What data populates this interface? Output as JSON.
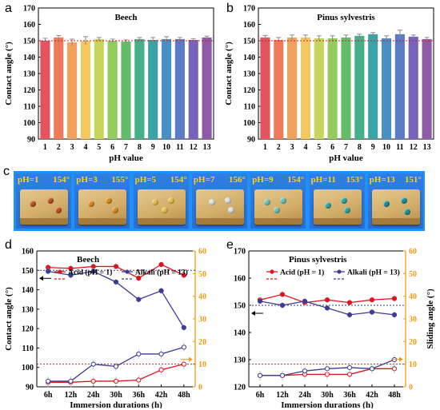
{
  "panel_letters": [
    "a",
    "b",
    "c",
    "d",
    "e"
  ],
  "colors": {
    "bar_palette": [
      "#e3545e",
      "#ee7a59",
      "#f2a15c",
      "#f4c860",
      "#c6d65c",
      "#93cb5e",
      "#62bd69",
      "#44b08a",
      "#39a3a6",
      "#4a8fc3",
      "#5b7bc7",
      "#7564b8",
      "#8e5aa6"
    ],
    "acid": "#e0141e",
    "alkali": "#3c3c96",
    "sliding_axis": "#f39c12",
    "reference_red": "#e0141e",
    "reference_blue": "#3c3c96"
  },
  "chart_data": [
    {
      "id": "a",
      "type": "bar",
      "title": "Beech",
      "xlabel": "pH value",
      "ylabel": "Contact angle (°)",
      "categories": [
        "1",
        "2",
        "3",
        "4",
        "5",
        "6",
        "7",
        "8",
        "9",
        "10",
        "11",
        "12",
        "13"
      ],
      "values": [
        150,
        152,
        149,
        150,
        151,
        150,
        149.5,
        151,
        150.5,
        151,
        151,
        150.5,
        152
      ],
      "errors": [
        1.5,
        1.2,
        2,
        2.5,
        1,
        1,
        1,
        1,
        1.5,
        1.5,
        1,
        0.8,
        0.8
      ],
      "reference_line": 150,
      "ylim": [
        90,
        170
      ],
      "yticks": [
        90,
        100,
        110,
        120,
        130,
        140,
        150,
        160,
        170
      ]
    },
    {
      "id": "b",
      "type": "bar",
      "title": "Pinus sylvestris",
      "xlabel": "pH value",
      "ylabel": "Contact angle (°)",
      "categories": [
        "1",
        "2",
        "3",
        "4",
        "5",
        "6",
        "7",
        "8",
        "9",
        "10",
        "11",
        "12",
        "13"
      ],
      "values": [
        152,
        150.5,
        152,
        152,
        151.5,
        151.5,
        152,
        153,
        154,
        151.5,
        154,
        152.5,
        151
      ],
      "errors": [
        1.2,
        1.5,
        1.5,
        1.5,
        1.5,
        1.5,
        1.5,
        1,
        1,
        1.5,
        2.5,
        1,
        1
      ],
      "reference_line": 150,
      "ylim": [
        90,
        170
      ],
      "yticks": [
        90,
        100,
        110,
        120,
        130,
        140,
        150,
        160,
        170
      ]
    },
    {
      "id": "d",
      "type": "line",
      "title": "Beech",
      "xlabel": "Immersion durations (h)",
      "ylabel": "Contact angle (°)",
      "y2label": "",
      "categories": [
        "6h",
        "12h",
        "24h",
        "30h",
        "36h",
        "42h",
        "48h"
      ],
      "ylim": [
        90,
        160
      ],
      "yticks": [
        90,
        100,
        110,
        120,
        130,
        140,
        150,
        160
      ],
      "y2lim": [
        0,
        60
      ],
      "y2ticks": [
        0,
        10,
        20,
        30,
        40,
        50,
        60
      ],
      "legend": [
        "Acid (pH = 1)",
        "Alkali (pH = 13)"
      ],
      "reference_line_contact": 150,
      "reference_line_sliding": 10,
      "series": [
        {
          "name": "Acid (pH = 1)",
          "role": "contact",
          "axis": "left",
          "marker": "filled",
          "values": [
            151.5,
            151,
            152,
            152,
            146,
            153,
            147.5
          ]
        },
        {
          "name": "Alkali (pH = 13)",
          "role": "contact",
          "axis": "left",
          "marker": "filled",
          "values": [
            149.5,
            147.5,
            149.5,
            144,
            135,
            139.5,
            120.5
          ]
        },
        {
          "name": "Acid (pH = 1)",
          "role": "sliding",
          "axis": "right",
          "marker": "open",
          "values": [
            2,
            2,
            2.5,
            2.5,
            3,
            7.5,
            10
          ]
        },
        {
          "name": "Alkali (pH = 13)",
          "role": "sliding",
          "axis": "right",
          "marker": "open",
          "values": [
            2.5,
            2.5,
            10,
            9,
            14.5,
            14.5,
            17.5
          ]
        }
      ]
    },
    {
      "id": "e",
      "type": "line",
      "title": "Pinus sylvestris",
      "xlabel": "Immersion durations (h)",
      "ylabel": "",
      "y2label": "Sliding angle (°)",
      "categories": [
        "6h",
        "12h",
        "24h",
        "30h",
        "36h",
        "42h",
        "48h"
      ],
      "ylim": [
        120,
        170
      ],
      "yticks": [
        120,
        130,
        140,
        150,
        160,
        170
      ],
      "y2lim": [
        0,
        60
      ],
      "y2ticks": [
        0,
        10,
        20,
        30,
        40,
        50,
        60
      ],
      "legend": [
        "Acid (pH = 1)",
        "Alkali (pH = 13)"
      ],
      "reference_line_contact": 150,
      "reference_line_sliding": 10,
      "series": [
        {
          "name": "Acid (pH = 1)",
          "role": "contact",
          "axis": "left",
          "marker": "filled",
          "values": [
            152,
            154,
            151,
            152,
            151,
            152,
            152.5
          ]
        },
        {
          "name": "Alkali (pH = 13)",
          "role": "contact",
          "axis": "left",
          "marker": "filled",
          "values": [
            151.5,
            150,
            151.5,
            149,
            146.5,
            147.5,
            146.5
          ]
        },
        {
          "name": "Acid (pH = 1)",
          "role": "sliding",
          "axis": "right",
          "marker": "open",
          "values": [
            5,
            5,
            5.5,
            5.5,
            5.5,
            8,
            8
          ]
        },
        {
          "name": "Alkali (pH = 13)",
          "role": "sliding",
          "axis": "right",
          "marker": "open",
          "values": [
            5,
            5,
            7,
            8,
            8.5,
            8,
            12
          ]
        }
      ]
    }
  ],
  "photo_panel": {
    "tiles": [
      {
        "ph": "pH=1",
        "angle": "154°",
        "drop_color": "#c2541e"
      },
      {
        "ph": "pH=3",
        "angle": "155°",
        "drop_color": "#e08a1c"
      },
      {
        "ph": "pH=5",
        "angle": "154°",
        "drop_color": "#e8c24a"
      },
      {
        "ph": "pH=7",
        "angle": "156°",
        "drop_color": "#d9e3df"
      },
      {
        "ph": "pH=9",
        "angle": "154°",
        "drop_color": "#6fc4b8"
      },
      {
        "ph": "pH=11",
        "angle": "153°",
        "drop_color": "#2fa8a2"
      },
      {
        "ph": "pH=13",
        "angle": "151°",
        "drop_color": "#1e8e96"
      }
    ]
  }
}
